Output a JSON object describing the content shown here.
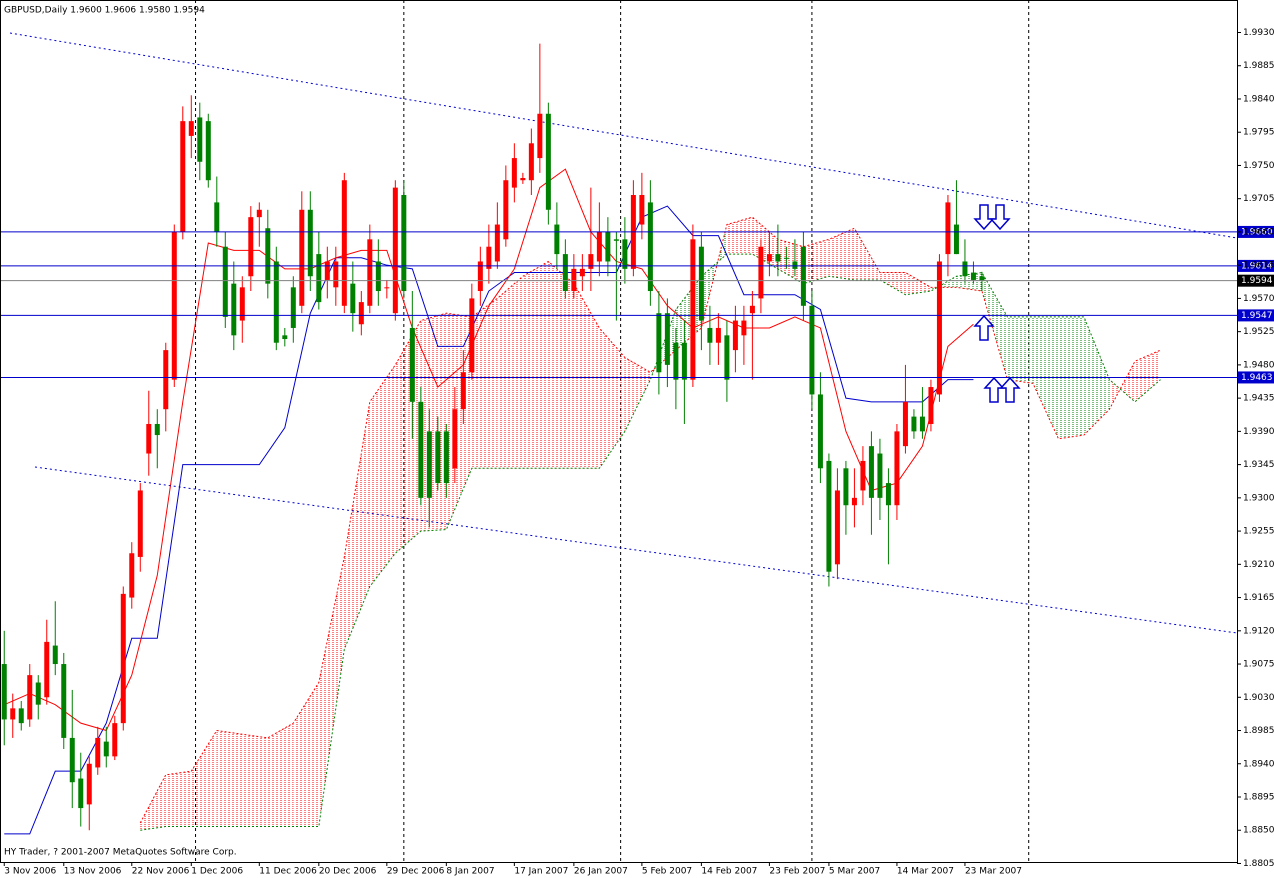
{
  "chart_data": {
    "type": "candlestick",
    "title": "GBPUSD,Daily  1.9600 1.9606 1.9580 1.9594",
    "footer": "HY Trader, ? 2001-2007 MetaQuotes Software Corp.",
    "xlim": [
      -0.5,
      145
    ],
    "ylim": [
      1.8807,
      1.9974
    ],
    "up_color": "#ff0000",
    "down_color": "#008000",
    "yticks": [
      {
        "value": 1.993,
        "label": "1.9930"
      },
      1.9885,
      {
        "value": 1.984,
        "label": "1.9840"
      },
      1.9795,
      {
        "value": 1.975,
        "label": "1.9750"
      },
      1.9705,
      {
        "value": 1.966,
        "label": "1.9660"
      },
      1.9615,
      {
        "value": 1.957,
        "label": "1.9570"
      },
      1.9525,
      {
        "value": 1.948,
        "label": "1.9480"
      },
      1.9435,
      {
        "value": 1.939,
        "label": "1.9390"
      },
      1.9345,
      {
        "value": 1.93,
        "label": "1.9300"
      },
      1.9255,
      {
        "value": 1.921,
        "label": "1.9210"
      },
      1.9165,
      {
        "value": 1.912,
        "label": "1.9120"
      },
      1.9075,
      {
        "value": 1.903,
        "label": "1.9030"
      },
      1.8985,
      {
        "value": 1.894,
        "label": "1.8940"
      },
      1.8895,
      {
        "value": 1.885,
        "label": "1.8850"
      },
      1.8805
    ],
    "xticks": [
      {
        "value": 0,
        "label": "3 Nov 2006"
      },
      {
        "value": 7,
        "label": "13 Nov 2006"
      },
      {
        "value": 15,
        "label": "22 Nov 2006"
      },
      {
        "value": 22,
        "label": "1 Dec 2006"
      },
      {
        "value": 30,
        "label": "11 Dec 2006"
      },
      {
        "value": 37,
        "label": "20 Dec 2006"
      },
      {
        "value": 45,
        "label": "29 Dec 2006"
      },
      {
        "value": 52,
        "label": "8 Jan 2007"
      },
      {
        "value": 60,
        "label": "17 Jan 2007"
      },
      {
        "value": 67,
        "label": "26 Jan 2007"
      },
      {
        "value": 75,
        "label": "5 Feb 2007"
      },
      {
        "value": 82,
        "label": "14 Feb 2007"
      },
      {
        "value": 90,
        "label": "23 Feb 2007"
      },
      {
        "value": 97,
        "label": "5 Mar 2007"
      },
      {
        "value": 105,
        "label": "14 Mar 2007"
      },
      {
        "value": 113,
        "label": "23 Mar 2007"
      }
    ],
    "separators": [
      22.5,
      47,
      72.5,
      95,
      120.5
    ],
    "candles": {
      "open": [
        1.9075,
        1.9,
        1.9015,
        1.9,
        1.905,
        1.903,
        1.91,
        1.9075,
        1.8975,
        1.892,
        1.8885,
        1.8935,
        1.897,
        1.895,
        1.8995,
        1.9165,
        1.922,
        1.936,
        1.94,
        1.942,
        1.946,
        1.966,
        1.979,
        1.9815,
        1.981,
        1.97,
        1.964,
        1.959,
        1.954,
        1.96,
        1.968,
        1.9665,
        1.962,
        1.952,
        1.9585,
        1.956,
        1.969,
        1.963,
        1.9595,
        1.9585,
        1.956,
        1.959,
        1.9535,
        1.956,
        1.962,
        1.9585,
        1.955,
        1.971,
        1.953,
        1.943,
        1.939,
        1.939,
        1.939,
        1.934,
        1.942,
        1.947,
        1.958,
        1.961,
        1.962,
        1.965,
        1.972,
        1.973,
        1.973,
        1.976,
        1.982,
        1.967,
        1.963,
        1.958,
        1.96,
        1.961,
        1.962,
        1.966,
        1.965,
        1.965,
        1.961,
        1.967,
        1.97,
        1.955,
        1.955,
        1.951,
        1.951,
        1.946,
        1.964,
        1.953,
        1.951,
        1.952,
        1.95,
        1.952,
        1.955,
        1.957,
        1.962,
        1.963,
        1.9625,
        1.962,
        1.964,
        1.956,
        1.944,
        1.935,
        1.921,
        1.934,
        1.929,
        1.931,
        1.937,
        1.936,
        1.932,
        1.929,
        1.937,
        1.941,
        1.941,
        1.94,
        1.944,
        1.963,
        1.967,
        1.962,
        1.9605,
        1.96
      ],
      "high": [
        1.912,
        1.9035,
        1.9025,
        1.9075,
        1.906,
        1.9135,
        1.916,
        1.909,
        1.904,
        1.8955,
        1.895,
        1.899,
        1.899,
        1.9005,
        1.918,
        1.924,
        1.932,
        1.9445,
        1.942,
        1.951,
        1.967,
        1.983,
        1.9845,
        1.9835,
        1.982,
        1.9735,
        1.966,
        1.962,
        1.96,
        1.9695,
        1.97,
        1.969,
        1.964,
        1.953,
        1.96,
        1.9715,
        1.9715,
        1.966,
        1.964,
        1.964,
        1.974,
        1.962,
        1.958,
        1.967,
        1.965,
        1.9595,
        1.973,
        1.973,
        1.958,
        1.945,
        1.942,
        1.941,
        1.94,
        1.945,
        1.95,
        1.959,
        1.964,
        1.967,
        1.97,
        1.975,
        1.978,
        1.974,
        1.98,
        1.9915,
        1.9835,
        1.97,
        1.965,
        1.963,
        1.963,
        1.972,
        1.97,
        1.968,
        1.966,
        1.968,
        1.973,
        1.974,
        1.973,
        1.958,
        1.957,
        1.953,
        1.954,
        1.967,
        1.966,
        1.956,
        1.955,
        1.954,
        1.956,
        1.956,
        1.958,
        1.965,
        1.966,
        1.967,
        1.964,
        1.965,
        1.966,
        1.958,
        1.947,
        1.936,
        1.934,
        1.935,
        1.934,
        1.937,
        1.939,
        1.938,
        1.934,
        1.94,
        1.948,
        1.942,
        1.945,
        1.946,
        1.963,
        1.971,
        1.973,
        1.965,
        1.962,
        1.9606
      ],
      "low": [
        1.8965,
        1.8975,
        1.8985,
        1.899,
        1.9,
        1.902,
        1.906,
        1.896,
        1.888,
        1.8855,
        1.885,
        1.8925,
        1.8935,
        1.8945,
        1.8985,
        1.915,
        1.92,
        1.933,
        1.934,
        1.939,
        1.945,
        1.965,
        1.976,
        1.973,
        1.972,
        1.964,
        1.953,
        1.95,
        1.951,
        1.958,
        1.964,
        1.957,
        1.95,
        1.9505,
        1.951,
        1.955,
        1.958,
        1.9555,
        1.957,
        1.956,
        1.955,
        1.9525,
        1.952,
        1.955,
        1.956,
        1.957,
        1.954,
        1.957,
        1.938,
        1.929,
        1.926,
        1.931,
        1.93,
        1.932,
        1.94,
        1.946,
        1.956,
        1.959,
        1.961,
        1.964,
        1.97,
        1.9725,
        1.971,
        1.974,
        1.967,
        1.961,
        1.957,
        1.957,
        1.958,
        1.958,
        1.96,
        1.96,
        1.954,
        1.959,
        1.96,
        1.965,
        1.956,
        1.944,
        1.945,
        1.942,
        1.94,
        1.945,
        1.95,
        1.948,
        1.948,
        1.943,
        1.947,
        1.948,
        1.946,
        1.955,
        1.96,
        1.96,
        1.961,
        1.96,
        1.954,
        1.942,
        1.932,
        1.918,
        1.919,
        1.925,
        1.926,
        1.929,
        1.925,
        1.927,
        1.921,
        1.927,
        1.936,
        1.938,
        1.938,
        1.939,
        1.943,
        1.96,
        1.963,
        1.959,
        1.959,
        1.958
      ],
      "close": [
        1.9,
        1.9015,
        1.8995,
        1.906,
        1.902,
        1.9105,
        1.9075,
        1.8975,
        1.8915,
        1.888,
        1.894,
        1.8975,
        1.895,
        1.8995,
        1.917,
        1.9225,
        1.931,
        1.94,
        1.9385,
        1.95,
        1.966,
        1.981,
        1.981,
        1.9755,
        1.973,
        1.966,
        1.9545,
        1.952,
        1.9585,
        1.968,
        1.969,
        1.959,
        1.951,
        1.9515,
        1.953,
        1.969,
        1.96,
        1.9565,
        1.962,
        1.962,
        1.973,
        1.955,
        1.9565,
        1.965,
        1.958,
        1.9585,
        1.972,
        1.958,
        1.943,
        1.93,
        1.93,
        1.932,
        1.932,
        1.942,
        1.947,
        1.957,
        1.962,
        1.964,
        1.967,
        1.973,
        1.976,
        1.9733,
        1.978,
        1.982,
        1.969,
        1.963,
        1.958,
        1.961,
        1.961,
        1.963,
        1.966,
        1.962,
        1.9648,
        1.961,
        1.971,
        1.971,
        1.958,
        1.947,
        1.948,
        1.946,
        1.946,
        1.965,
        1.954,
        1.951,
        1.953,
        1.946,
        1.954,
        1.954,
        1.956,
        1.964,
        1.963,
        1.962,
        1.9624,
        1.961,
        1.956,
        1.944,
        1.934,
        1.92,
        1.931,
        1.929,
        1.93,
        1.935,
        1.93,
        1.93,
        1.929,
        1.939,
        1.943,
        1.939,
        1.939,
        1.945,
        1.962,
        1.97,
        1.963,
        1.96,
        1.9595,
        1.9594
      ]
    },
    "tenkan": {
      "color": "#ff0000",
      "x": [
        0,
        3,
        6,
        9,
        12,
        15,
        18,
        21,
        24,
        27,
        30,
        33,
        36,
        39,
        42,
        45,
        48,
        51,
        54,
        57,
        60,
        63,
        66,
        69,
        72,
        75,
        78,
        81,
        84,
        87,
        90,
        93,
        96,
        99,
        102,
        105,
        108,
        111,
        114
      ],
      "values": [
        1.902,
        1.9035,
        1.902,
        1.8995,
        1.8985,
        1.906,
        1.9195,
        1.943,
        1.9645,
        1.9635,
        1.9635,
        1.961,
        1.961,
        1.9625,
        1.9635,
        1.9635,
        1.953,
        1.945,
        1.948,
        1.956,
        1.961,
        1.972,
        1.9745,
        1.966,
        1.962,
        1.961,
        1.956,
        1.953,
        1.9545,
        1.953,
        1.953,
        1.9545,
        1.953,
        1.939,
        1.931,
        1.932,
        1.937,
        1.9505,
        1.9535
      ]
    },
    "kijun": {
      "color": "#0000cc",
      "x": [
        0,
        3,
        6,
        9,
        12,
        15,
        18,
        21,
        24,
        27,
        30,
        33,
        36,
        39,
        42,
        45,
        48,
        51,
        54,
        57,
        60,
        63,
        66,
        69,
        72,
        75,
        78,
        81,
        84,
        87,
        90,
        93,
        96,
        99,
        102,
        105,
        108,
        111,
        114
      ],
      "values": [
        1.8845,
        1.8845,
        1.893,
        1.893,
        1.8995,
        1.911,
        1.911,
        1.9345,
        1.9345,
        1.9345,
        1.9345,
        1.9395,
        1.955,
        1.9625,
        1.9625,
        1.9615,
        1.961,
        1.9505,
        1.9505,
        1.958,
        1.9605,
        1.9605,
        1.9605,
        1.9605,
        1.9605,
        1.968,
        1.9695,
        1.9655,
        1.9655,
        1.9575,
        1.9575,
        1.9575,
        1.9555,
        1.9435,
        1.943,
        1.943,
        1.943,
        1.946,
        1.946
      ]
    },
    "cloud": {
      "span_a_color": "#ff0000",
      "span_b_color": "#008000",
      "x": [
        16,
        19,
        22,
        25,
        28,
        31,
        34,
        37,
        40,
        43,
        46,
        49,
        52,
        55,
        58,
        61,
        64,
        67,
        70,
        73,
        76,
        79,
        82,
        85,
        88,
        91,
        94,
        97,
        100,
        103,
        106,
        109,
        112,
        115,
        118,
        121,
        124,
        127,
        130,
        133,
        136
      ],
      "span_a": [
        1.886,
        1.8925,
        1.893,
        1.8985,
        1.898,
        1.8975,
        1.8995,
        1.905,
        1.922,
        1.943,
        1.948,
        1.954,
        1.955,
        1.9545,
        1.957,
        1.96,
        1.962,
        1.959,
        1.953,
        1.949,
        1.947,
        1.95,
        1.953,
        1.967,
        1.968,
        1.965,
        1.964,
        1.965,
        1.9665,
        1.9605,
        1.9605,
        1.9585,
        1.9585,
        1.958,
        1.946,
        1.9455,
        1.938,
        1.9385,
        1.942,
        1.9485,
        1.95
      ],
      "span_b": [
        1.885,
        1.8855,
        1.8855,
        1.8855,
        1.8855,
        1.8855,
        1.8855,
        1.8855,
        1.9095,
        1.918,
        1.9225,
        1.9255,
        1.9257,
        1.934,
        1.934,
        1.934,
        1.934,
        1.934,
        1.934,
        1.939,
        1.946,
        1.9555,
        1.96,
        1.963,
        1.963,
        1.961,
        1.959,
        1.96,
        1.9595,
        1.9595,
        1.9575,
        1.958,
        1.96,
        1.9605,
        1.9545,
        1.9545,
        1.9545,
        1.9545,
        1.946,
        1.943,
        1.946
      ]
    },
    "levels": [
      {
        "value": 1.966,
        "label": "1.9660",
        "color": "#0000cc"
      },
      {
        "value": 1.9614,
        "color": "#0000cc"
      },
      {
        "value": 1.9594,
        "color": "#808080"
      },
      {
        "value": 1.9547,
        "color": "#0000cc"
      },
      {
        "value": 1.9463,
        "color": "#0000cc"
      }
    ]
  }
}
